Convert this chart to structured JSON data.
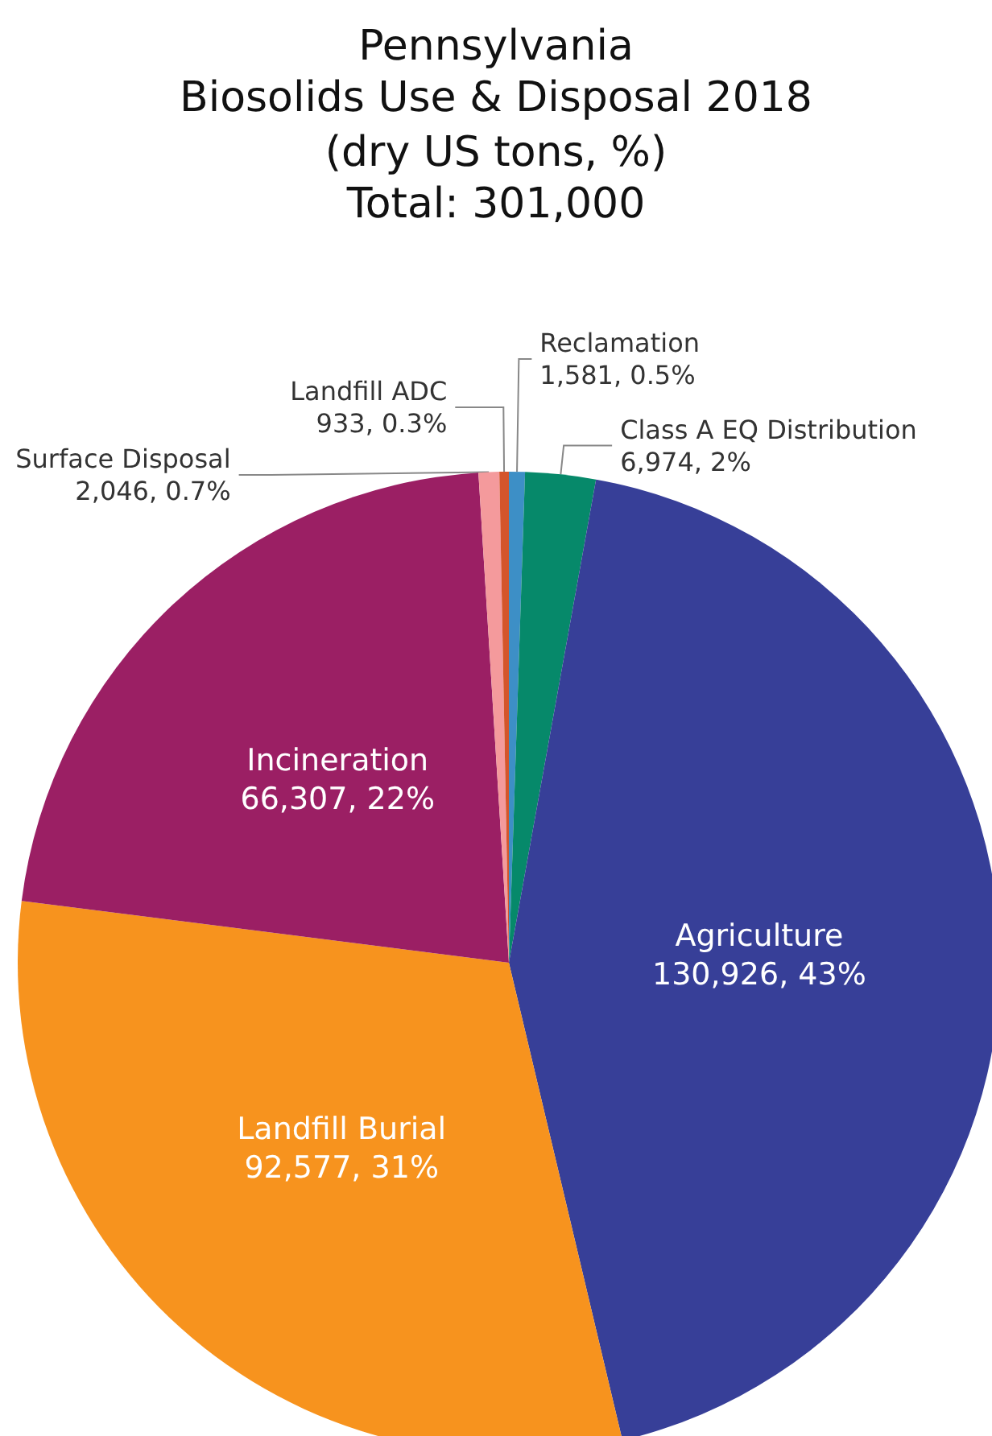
{
  "chart_data": {
    "type": "pie",
    "title": "Pennsylvania\nBiosolids Use & Disposal 2018",
    "subtitle": "(dry US tons, %)",
    "annotations": [
      "Total: 301,000"
    ],
    "categories": [
      "Reclamation",
      "Class A EQ Distribution",
      "Agriculture",
      "Landfill Burial",
      "Incineration",
      "Surface Disposal",
      "Landfill ADC"
    ],
    "values": [
      1581,
      6974,
      130926,
      92577,
      66307,
      2046,
      933
    ],
    "value_labels": [
      "1,581, 0.5%",
      "6,974, 2%",
      "130,926, 43%",
      "92,577, 31%",
      "66,307, 22%",
      "2,046, 0.7%",
      "933, 0.3%"
    ],
    "colors": [
      "#3d8fc6",
      "#06896a",
      "#373f98",
      "#f7931e",
      "#9b1f64",
      "#f49a9c",
      "#d4552b"
    ]
  }
}
